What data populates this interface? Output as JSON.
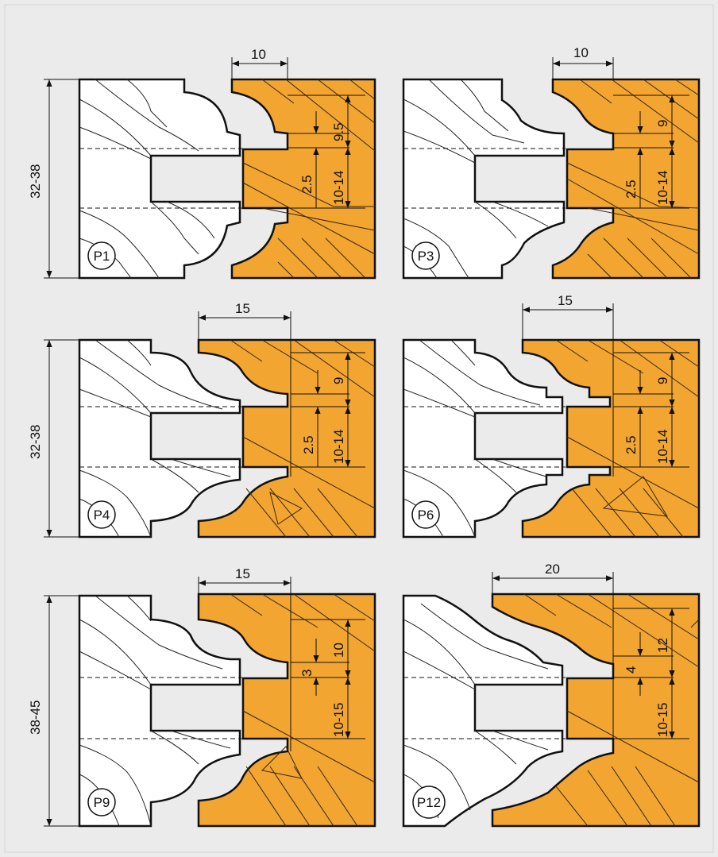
{
  "colors": {
    "background": "#ebebeb",
    "wood_stock": "#f2a531",
    "wood_blank": "#ffffff",
    "line": "#111111"
  },
  "profiles": [
    {
      "label": "P1",
      "overall_height": "32-38",
      "width": "10",
      "dim_upper": "9.5",
      "dim_offset": "2.5",
      "dim_lower": "10-14"
    },
    {
      "label": "P3",
      "overall_height": "",
      "width": "10",
      "dim_upper": "9",
      "dim_offset": "2.5",
      "dim_lower": "10-14"
    },
    {
      "label": "P4",
      "overall_height": "32-38",
      "width": "15",
      "dim_upper": "9",
      "dim_offset": "2.5",
      "dim_lower": "10-14"
    },
    {
      "label": "P6",
      "overall_height": "",
      "width": "15",
      "dim_upper": "9",
      "dim_offset": "2.5",
      "dim_lower": "10-14"
    },
    {
      "label": "P9",
      "overall_height": "38-45",
      "width": "15",
      "dim_upper": "10",
      "dim_offset": "3",
      "dim_lower": "10-15"
    },
    {
      "label": "P12",
      "overall_height": "",
      "width": "20",
      "dim_upper": "12",
      "dim_offset": "4",
      "dim_lower": "10-15"
    }
  ]
}
